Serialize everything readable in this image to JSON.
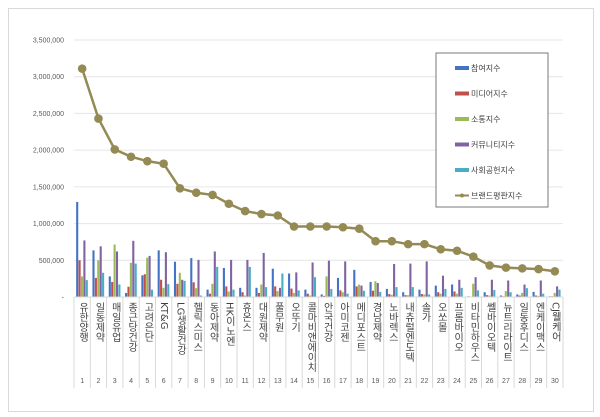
{
  "chart_data": {
    "type": "bar",
    "title": "",
    "xlabel": "",
    "ylabel": "",
    "ylim": [
      0,
      3500000
    ],
    "yticks": [
      "-",
      "500,000",
      "1,000,000",
      "1,500,000",
      "2,000,000",
      "2,500,000",
      "3,000,000",
      "3,500,000"
    ],
    "grid": true,
    "legend_position": "top-right",
    "x": [
      "1",
      "2",
      "3",
      "4",
      "5",
      "6",
      "7",
      "8",
      "9",
      "10",
      "11",
      "12",
      "13",
      "14",
      "15",
      "16",
      "17",
      "18",
      "19",
      "20",
      "21",
      "22",
      "23",
      "24",
      "25",
      "26",
      "27",
      "28",
      "29",
      "30"
    ],
    "categories": [
      "유한양행",
      "일동제약",
      "매일유업",
      "종근당건강",
      "고려은단",
      "KT&G",
      "LG생활건강",
      "헬릭스미스",
      "동아제약",
      "HK이노엔",
      "휴온스",
      "대원제약",
      "풀무원",
      "오뚜기",
      "콜마비앤에이치",
      "안국건강",
      "아미코젠",
      "메디포스트",
      "경남제약",
      "노바렉스",
      "내츄럴엔도텍",
      "솔가",
      "오쏘몰",
      "프롬바이오",
      "비타민하우스",
      "쎌바이오텍",
      "뉴트리라이트",
      "일동후디스",
      "엔케이맥스",
      "CJ웰케어"
    ],
    "series": [
      {
        "name": "참여지수",
        "type": "bar",
        "color": "#4472c4",
        "values": [
          1295000,
          635000,
          280000,
          55000,
          295000,
          635000,
          480000,
          530000,
          100000,
          395000,
          125000,
          125000,
          385000,
          320000,
          100000,
          35000,
          260000,
          370000,
          205000,
          110000,
          65000,
          100000,
          155000,
          170000,
          10000,
          65000,
          20000,
          35000,
          70000,
          10000
        ]
      },
      {
        "name": "미디어지수",
        "type": "bar",
        "color": "#c0504d",
        "values": [
          500000,
          260000,
          205000,
          140000,
          310000,
          235000,
          180000,
          200000,
          45000,
          145000,
          65000,
          55000,
          145000,
          115000,
          45000,
          15000,
          90000,
          145000,
          85000,
          40000,
          25000,
          40000,
          65000,
          75000,
          5000,
          25000,
          10000,
          20000,
          20000,
          10000
        ]
      },
      {
        "name": "소통지수",
        "type": "bar",
        "color": "#9bbb59",
        "values": [
          280000,
          500000,
          715000,
          465000,
          535000,
          125000,
          330000,
          120000,
          180000,
          75000,
          20000,
          170000,
          80000,
          55000,
          20000,
          280000,
          65000,
          170000,
          215000,
          30000,
          25000,
          35000,
          45000,
          45000,
          180000,
          20000,
          80000,
          55000,
          15000,
          55000
        ]
      },
      {
        "name": "커뮤니티지수",
        "type": "bar",
        "color": "#8064a2",
        "values": [
          770000,
          690000,
          620000,
          765000,
          560000,
          610000,
          235000,
          505000,
          620000,
          505000,
          505000,
          600000,
          125000,
          335000,
          470000,
          495000,
          485000,
          155000,
          190000,
          450000,
          455000,
          485000,
          290000,
          235000,
          270000,
          235000,
          225000,
          170000,
          225000,
          145000
        ]
      },
      {
        "name": "사회공헌지수",
        "type": "bar",
        "color": "#4bacc6",
        "values": [
          230000,
          330000,
          170000,
          455000,
          100000,
          175000,
          220000,
          20000,
          410000,
          100000,
          410000,
          135000,
          320000,
          90000,
          270000,
          110000,
          45000,
          85000,
          70000,
          135000,
          135000,
          35000,
          110000,
          125000,
          90000,
          95000,
          65000,
          120000,
          45000,
          100000
        ]
      },
      {
        "name": "브랜드평판지수",
        "type": "line",
        "color": "#948a54",
        "values": [
          3110000,
          2430000,
          2010000,
          1910000,
          1850000,
          1815000,
          1480000,
          1420000,
          1390000,
          1270000,
          1170000,
          1130000,
          1110000,
          960000,
          960000,
          960000,
          950000,
          930000,
          760000,
          760000,
          720000,
          720000,
          650000,
          630000,
          550000,
          430000,
          400000,
          390000,
          380000,
          350000
        ]
      }
    ]
  }
}
